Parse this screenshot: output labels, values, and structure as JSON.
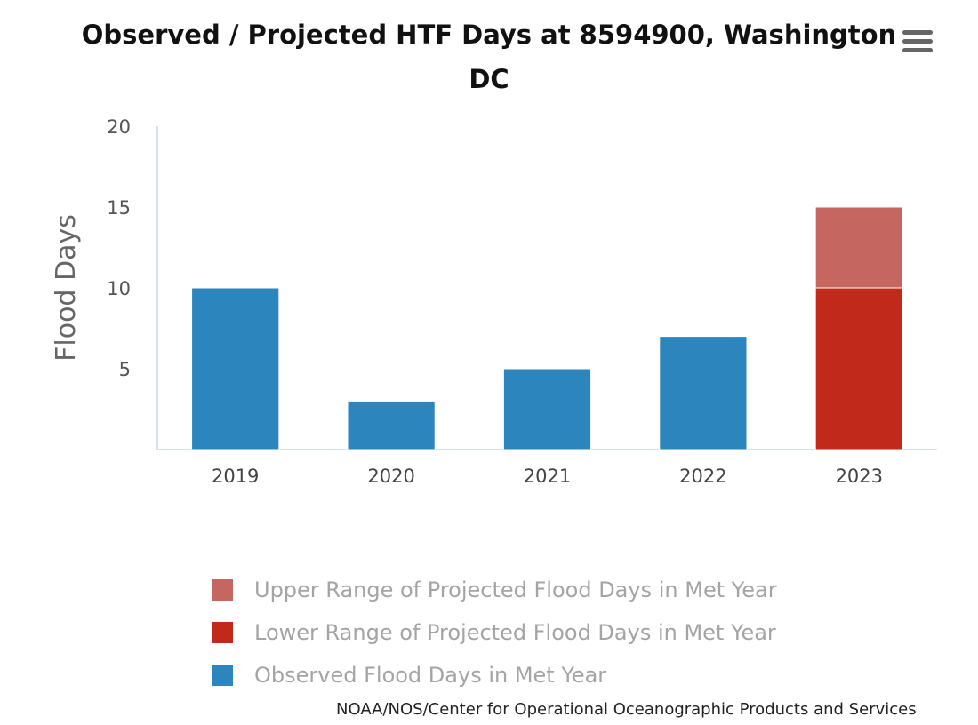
{
  "chart_data": {
    "type": "bar",
    "stacked": true,
    "title": "Observed / Projected HTF Days at 8594900, Washington DC",
    "xlabel": "",
    "ylabel": "Flood Days",
    "categories": [
      "2019",
      "2020",
      "2021",
      "2022",
      "2023"
    ],
    "yticks": [
      "5",
      "10",
      "15",
      "20"
    ],
    "ylim": [
      0,
      20
    ],
    "grid": false,
    "legend_position": "bottom",
    "series": [
      {
        "name": "Upper Range of Projected Flood Days in Met Year",
        "color": "#c56660",
        "values": [
          0,
          0,
          0,
          0,
          5
        ]
      },
      {
        "name": "Lower Range of Projected Flood Days in Met Year",
        "color": "#c12a1a",
        "values": [
          0,
          0,
          0,
          0,
          10
        ]
      },
      {
        "name": "Observed Flood Days in Met Year",
        "color": "#2c85bd",
        "values": [
          10,
          3,
          5,
          7,
          0
        ]
      }
    ]
  },
  "menu": {
    "icon": "hamburger-menu-icon"
  },
  "credit": "NOAA/NOS/Center for Operational Oceanographic Products and Services"
}
